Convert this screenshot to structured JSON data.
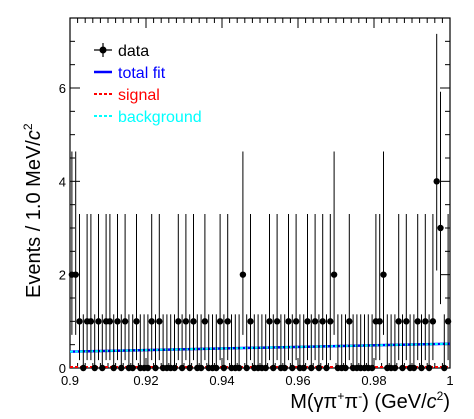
{
  "chart_data": {
    "type": "scatter",
    "title": "",
    "xlabel_parts": [
      "M(γπ",
      "+",
      "π",
      "-",
      ") (GeV/",
      "c",
      "2",
      ")"
    ],
    "ylabel_parts": [
      "Events / 1.0 MeV/",
      "c",
      "2"
    ],
    "xlim": [
      0.9,
      1.0
    ],
    "ylim": [
      0,
      7.5
    ],
    "x_ticks": [
      0.9,
      0.92,
      0.94,
      0.96,
      0.98,
      1
    ],
    "x_tick_labels": [
      "0.9",
      "0.92",
      "0.94",
      "0.96",
      "0.98",
      "1"
    ],
    "y_ticks": [
      0,
      2,
      4,
      6
    ],
    "y_tick_labels": [
      "0",
      "2",
      "4",
      "6"
    ],
    "legend": {
      "position": "top-left",
      "entries": [
        {
          "label": "data",
          "style": "marker",
          "color": "#000000"
        },
        {
          "label": "total fit",
          "style": "solid",
          "color": "#0000ff"
        },
        {
          "label": "signal",
          "style": "dashed",
          "color": "#ff0000"
        },
        {
          "label": "background",
          "style": "dashed",
          "color": "#00ffff"
        }
      ]
    },
    "series": [
      {
        "name": "data",
        "color": "#000000",
        "x": [
          0.9005,
          0.9015,
          0.9025,
          0.9035,
          0.9045,
          0.9055,
          0.9065,
          0.9075,
          0.9085,
          0.9095,
          0.9105,
          0.9115,
          0.9125,
          0.9135,
          0.9145,
          0.9155,
          0.9165,
          0.9175,
          0.9185,
          0.9195,
          0.9205,
          0.9215,
          0.9225,
          0.9235,
          0.9245,
          0.9255,
          0.9265,
          0.9275,
          0.9285,
          0.9295,
          0.9305,
          0.9315,
          0.9325,
          0.9335,
          0.9345,
          0.9355,
          0.9365,
          0.9375,
          0.9385,
          0.9395,
          0.9405,
          0.9415,
          0.9425,
          0.9435,
          0.9445,
          0.9455,
          0.9465,
          0.9475,
          0.9485,
          0.9495,
          0.9505,
          0.9515,
          0.9525,
          0.9535,
          0.9545,
          0.9555,
          0.9565,
          0.9575,
          0.9585,
          0.9595,
          0.9605,
          0.9615,
          0.9625,
          0.9635,
          0.9645,
          0.9655,
          0.9665,
          0.9675,
          0.9685,
          0.9695,
          0.9705,
          0.9715,
          0.9725,
          0.9735,
          0.9745,
          0.9755,
          0.9765,
          0.9775,
          0.9785,
          0.9795,
          0.9805,
          0.9815,
          0.9825,
          0.9835,
          0.9845,
          0.9855,
          0.9865,
          0.9875,
          0.9885,
          0.9895,
          0.9905,
          0.9915,
          0.9925,
          0.9935,
          0.9945,
          0.9955,
          0.9965,
          0.9975,
          0.9985,
          0.9995
        ],
        "y": [
          2,
          2,
          1,
          0,
          1,
          1,
          0,
          1,
          0,
          1,
          1,
          0,
          1,
          0,
          1,
          0,
          0,
          1,
          0,
          0,
          0,
          1,
          0,
          1,
          0,
          0,
          0,
          0,
          1,
          0,
          1,
          0,
          1,
          0,
          0,
          1,
          0,
          0,
          0,
          1,
          0,
          1,
          0,
          0,
          0,
          2,
          0,
          1,
          0,
          0,
          0,
          0,
          1,
          0,
          1,
          0,
          0,
          1,
          0,
          1,
          0,
          0,
          1,
          0,
          1,
          0,
          1,
          0,
          1,
          2,
          0,
          0,
          0,
          1,
          0,
          0,
          0,
          0,
          0,
          0,
          1,
          1,
          2,
          0,
          0,
          0,
          1,
          0,
          1,
          0,
          0,
          1,
          0,
          1,
          0,
          1,
          4,
          3,
          0,
          1
        ]
      },
      {
        "name": "total fit",
        "color": "#0000ff",
        "style": "solid",
        "x": [
          0.9,
          1.0
        ],
        "y": [
          0.35,
          0.52
        ]
      },
      {
        "name": "signal",
        "color": "#ff0000",
        "style": "dashed",
        "x": [
          0.9,
          1.0
        ],
        "y": [
          0.0,
          0.0
        ]
      },
      {
        "name": "background",
        "color": "#00ffff",
        "style": "dashed",
        "x": [
          0.9,
          1.0
        ],
        "y": [
          0.35,
          0.52
        ]
      }
    ]
  },
  "colors": {
    "data": "#000000",
    "total_fit": "#0000ff",
    "signal": "#ff0000",
    "background": "#00ffff",
    "frame": "#000000"
  }
}
